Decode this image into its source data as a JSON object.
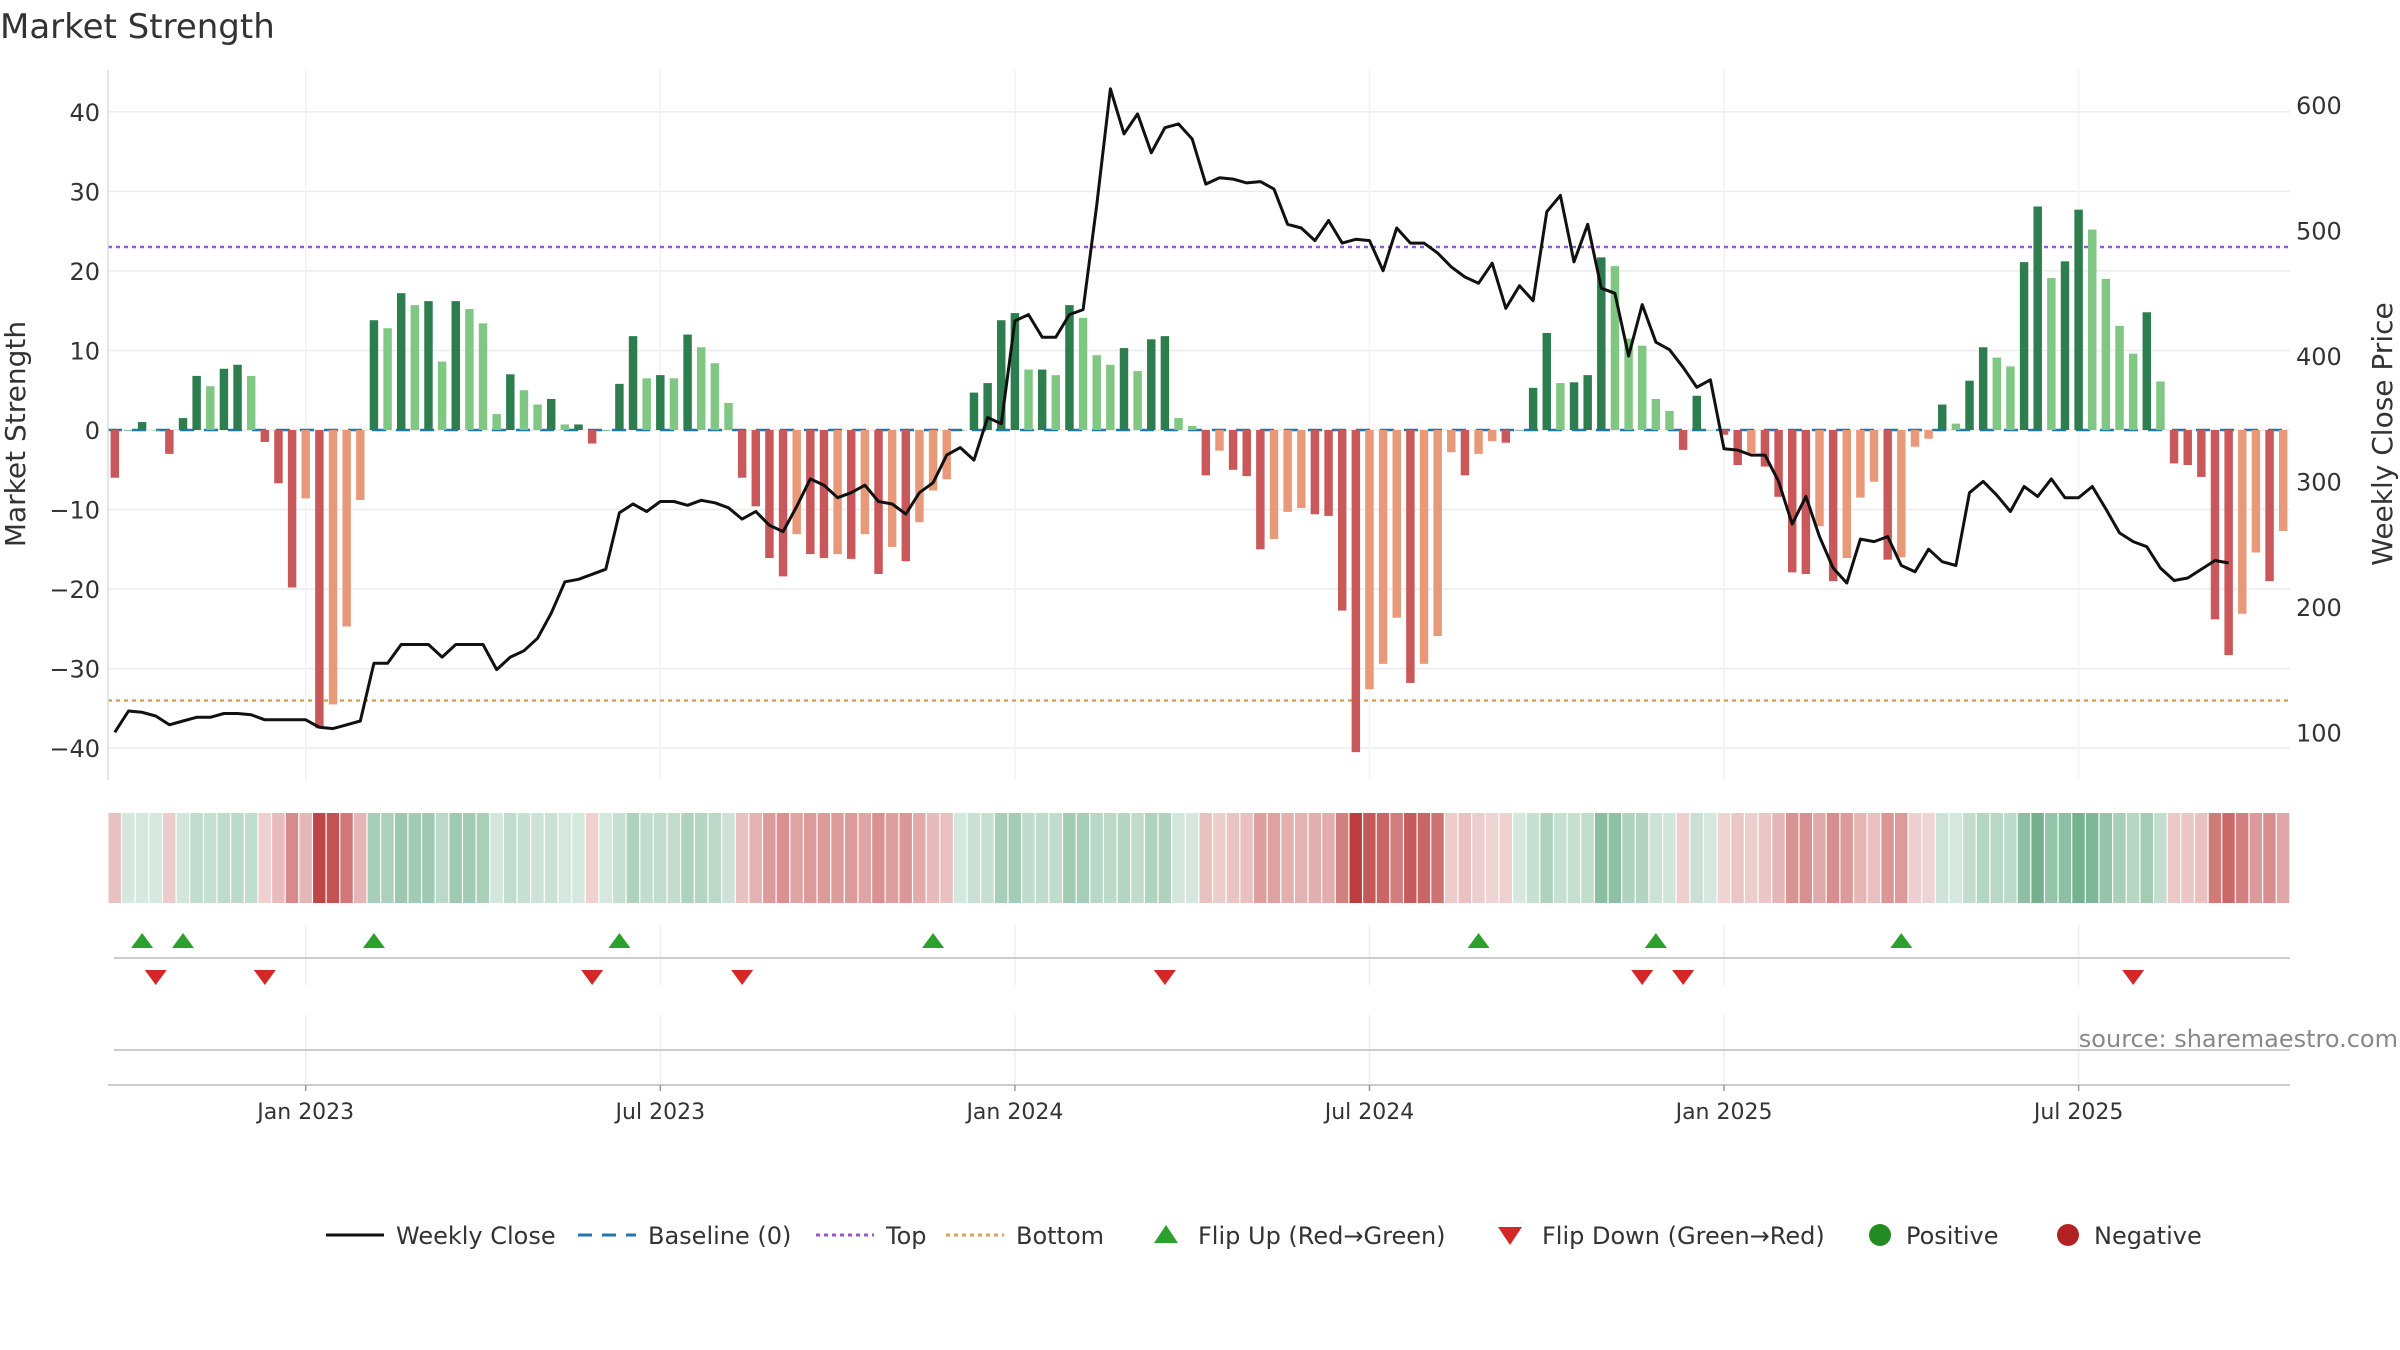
{
  "chart_data": {
    "type": "bar",
    "title": "Market Strength",
    "ylabel_left": "Market Strength",
    "ylabel_right": "Weekly Close Price",
    "source": "source: sharemaestro.com",
    "ylim_left": [
      -44,
      44
    ],
    "ylim_right": [
      62,
      620
    ],
    "yticks_left": [
      40,
      30,
      20,
      10,
      0,
      -10,
      -20,
      -30,
      -40
    ],
    "ytick_labels_left": [
      "40",
      "30",
      "20",
      "10",
      "0",
      "−10",
      "−20",
      "−30",
      "−40"
    ],
    "yticks_right": [
      600,
      500,
      400,
      300,
      200,
      100
    ],
    "x_ticks": [
      {
        "week": 14,
        "label": "Jan 2023"
      },
      {
        "week": 40,
        "label": "Jul 2023"
      },
      {
        "week": 66,
        "label": "Jan 2024"
      },
      {
        "week": 92,
        "label": "Jul 2024"
      },
      {
        "week": 118,
        "label": "Jan 2025"
      },
      {
        "week": 144,
        "label": "Jul 2025"
      }
    ],
    "grid": true,
    "legend_position": "bottom",
    "top_level": 23,
    "bottom_level": -34,
    "colors": {
      "bar_pos_strong": "#2e7d4f",
      "bar_pos_weak": "#81c784",
      "bar_neg_strong": "#c9585a",
      "bar_neg_weak": "#e8997a",
      "line": "#111111",
      "baseline": "#1f77b4",
      "top": "#9b59d0",
      "bottom": "#e0a050",
      "flip_up": "#2ca02c",
      "flip_down": "#d62728",
      "positive": "#228b22",
      "negative": "#b22222"
    },
    "market_strength": [
      -6,
      0,
      1,
      0,
      -3,
      1.5,
      6.8,
      5.5,
      7.7,
      8.2,
      6.8,
      -1.5,
      -6.7,
      -19.8,
      -8.6,
      -37.5,
      -34.5,
      -24.7,
      -8.8,
      13.8,
      12.8,
      17.2,
      15.7,
      16.2,
      8.6,
      16.2,
      15.2,
      13.4,
      2,
      7,
      5,
      3.2,
      3.9,
      0.7,
      0.7,
      -1.7,
      0,
      5.8,
      11.8,
      6.5,
      6.9,
      6.5,
      12,
      10.4,
      8.4,
      3.4,
      -6,
      -9.6,
      -16.1,
      -18.4,
      -13.1,
      -15.6,
      -16.1,
      -15.6,
      -16.2,
      -13.1,
      -18.1,
      -14.7,
      -16.5,
      -11.6,
      -7.6,
      -6.2,
      0,
      4.7,
      5.9,
      13.8,
      14.7,
      7.6,
      7.6,
      6.9,
      15.7,
      14.1,
      9.4,
      8.2,
      10.3,
      7.4,
      11.4,
      11.8,
      1.5,
      0.5,
      -5.7,
      -2.6,
      -5,
      -5.8,
      -15,
      -13.7,
      -10.3,
      -9.8,
      -10.6,
      -10.8,
      -22.7,
      -40.5,
      -32.6,
      -29.4,
      -23.6,
      -31.8,
      -29.4,
      -25.9,
      -2.8,
      -5.7,
      -3,
      -1.4,
      -1.6,
      0,
      5.3,
      12.2,
      5.9,
      6,
      6.9,
      21.7,
      20.6,
      11.5,
      10.6,
      3.9,
      2.4,
      -2.5,
      4.3,
      0,
      -0.6,
      -4.4,
      -2.9,
      -4.6,
      -8.4,
      -17.9,
      -18.1,
      -12.1,
      -19,
      -16.1,
      -8.5,
      -6.5,
      -16.3,
      -16,
      -2.1,
      -1.1,
      3.2,
      0.8,
      6.2,
      10.4,
      9.1,
      8,
      21.1,
      28.1,
      19.1,
      21.2,
      27.7,
      25.2,
      19,
      13.1,
      9.6,
      14.8,
      6.1,
      -4.2,
      -4.4,
      -5.9,
      -23.8,
      -28.3,
      -23.1,
      -15.4,
      -19,
      -12.7
    ],
    "weekly_close": [
      100,
      117,
      116,
      113,
      106,
      109,
      112,
      112,
      115,
      115,
      114,
      110,
      110,
      110,
      110,
      104,
      103,
      106,
      109,
      155,
      155,
      170,
      170,
      170,
      160,
      170,
      170,
      170,
      150,
      160,
      165,
      175,
      195,
      220,
      222,
      226,
      230,
      275,
      282,
      276,
      284,
      284,
      281,
      285,
      283,
      279,
      270,
      276,
      265,
      260,
      280,
      302,
      297,
      287,
      291,
      297,
      284,
      282,
      274,
      291,
      299,
      321,
      327,
      317,
      351,
      346,
      428,
      433,
      415,
      415,
      433,
      437,
      520,
      613,
      577,
      593,
      562,
      582,
      585,
      573,
      537,
      542,
      541,
      538,
      539,
      533,
      505,
      502,
      492,
      508,
      490,
      493,
      492,
      468,
      502,
      490,
      490,
      482,
      471,
      463,
      458,
      474,
      438,
      456,
      444,
      515,
      528,
      475,
      505,
      454,
      450,
      400,
      441,
      411,
      405,
      391,
      375,
      381,
      326,
      325,
      321,
      321,
      300,
      266,
      288,
      256,
      231,
      219,
      254,
      252,
      256,
      233,
      228,
      246,
      236,
      233,
      291,
      300,
      289,
      276,
      296,
      288,
      302,
      287,
      287,
      296,
      278,
      259,
      252,
      248,
      231,
      221,
      223,
      230,
      237,
      235
    ],
    "flip_up_weeks": [
      2,
      5,
      19,
      37,
      60,
      100,
      113,
      131
    ],
    "flip_down_weeks": [
      3,
      11,
      35,
      46,
      77,
      112,
      115,
      148
    ],
    "legend": [
      "Weekly Close",
      "Baseline (0)",
      "Top",
      "Bottom",
      "Flip Up (Red→Green)",
      "Flip Down (Green→Red)",
      "Positive",
      "Negative"
    ]
  }
}
